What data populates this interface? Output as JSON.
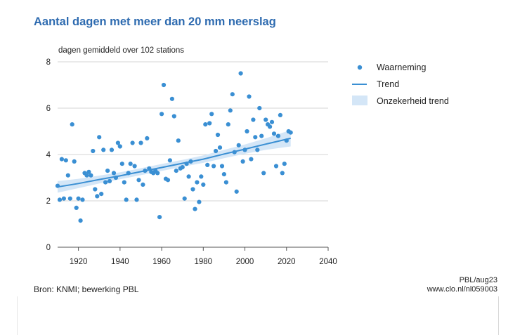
{
  "chart_data": {
    "type": "scatter",
    "title": "Aantal dagen met meer dan 20 mm neerslag",
    "ylabel": "dagen gemiddeld over 102 stations",
    "xlabel": "",
    "xlim": [
      1910,
      2040
    ],
    "ylim": [
      0,
      8
    ],
    "xticks": [
      1920,
      1940,
      1960,
      1980,
      2000,
      2020,
      2040
    ],
    "yticks": [
      0,
      2,
      4,
      6,
      8
    ],
    "grid": true,
    "legend_position": "right",
    "colors": {
      "points": "#3a8fd3",
      "trend": "#3a8fd3",
      "band": "#d4e6f7"
    },
    "series": [
      {
        "name": "Waarneming",
        "kind": "points",
        "x": [
          1910,
          1911,
          1912,
          1913,
          1914,
          1915,
          1916,
          1917,
          1918,
          1919,
          1920,
          1921,
          1922,
          1923,
          1924,
          1925,
          1926,
          1927,
          1928,
          1929,
          1930,
          1931,
          1932,
          1933,
          1934,
          1935,
          1936,
          1937,
          1938,
          1939,
          1940,
          1941,
          1942,
          1943,
          1944,
          1945,
          1946,
          1947,
          1948,
          1949,
          1950,
          1951,
          1952,
          1953,
          1954,
          1955,
          1956,
          1957,
          1958,
          1959,
          1960,
          1961,
          1962,
          1963,
          1964,
          1965,
          1966,
          1967,
          1968,
          1969,
          1970,
          1971,
          1972,
          1973,
          1974,
          1975,
          1976,
          1977,
          1978,
          1979,
          1980,
          1981,
          1982,
          1983,
          1984,
          1985,
          1986,
          1987,
          1988,
          1989,
          1990,
          1991,
          1992,
          1993,
          1994,
          1995,
          1996,
          1997,
          1998,
          1999,
          2000,
          2001,
          2002,
          2003,
          2004,
          2005,
          2006,
          2007,
          2008,
          2009,
          2010,
          2011,
          2012,
          2013,
          2014,
          2015,
          2016,
          2017,
          2018,
          2019,
          2020,
          2021,
          2022
        ],
        "y": [
          2.65,
          2.05,
          3.8,
          2.1,
          3.75,
          3.1,
          2.1,
          5.3,
          3.7,
          1.7,
          2.1,
          1.15,
          2.05,
          3.2,
          3.1,
          3.25,
          3.1,
          4.15,
          2.5,
          2.2,
          4.75,
          2.3,
          4.2,
          2.8,
          3.3,
          2.85,
          4.2,
          3.2,
          3.0,
          4.5,
          4.35,
          3.6,
          2.8,
          2.05,
          3.2,
          3.6,
          4.5,
          3.5,
          2.05,
          2.9,
          4.5,
          2.7,
          3.3,
          4.7,
          3.4,
          3.25,
          3.2,
          3.3,
          3.2,
          1.3,
          5.75,
          7.0,
          2.95,
          2.9,
          3.75,
          6.4,
          5.65,
          3.3,
          4.6,
          3.4,
          3.45,
          2.1,
          3.6,
          3.05,
          3.7,
          2.5,
          1.65,
          2.8,
          1.95,
          3.05,
          2.7,
          5.3,
          3.55,
          5.35,
          5.75,
          3.5,
          4.15,
          4.85,
          4.3,
          3.5,
          3.15,
          2.8,
          5.3,
          5.9,
          6.6,
          4.1,
          2.4,
          4.4,
          7.5,
          3.7,
          4.2,
          5.0,
          6.5,
          3.8,
          5.5,
          4.75,
          4.2,
          6.0,
          4.8,
          3.2,
          5.5,
          5.3,
          5.2,
          5.4,
          4.9,
          3.5,
          4.8,
          5.7,
          3.2,
          3.6,
          4.6,
          5.0,
          4.95
        ]
      },
      {
        "name": "Trend",
        "kind": "line",
        "x": [
          1910,
          1920,
          1930,
          1940,
          1950,
          1960,
          1970,
          1980,
          1990,
          2000,
          2010,
          2022
        ],
        "y": [
          2.6,
          2.75,
          2.92,
          3.08,
          3.26,
          3.44,
          3.62,
          3.8,
          4.02,
          4.23,
          4.45,
          4.7
        ]
      },
      {
        "name": "Onzekerheid trend",
        "kind": "band",
        "x": [
          1910,
          1920,
          1930,
          1940,
          1950,
          1960,
          1970,
          1980,
          1990,
          2000,
          2010,
          2022
        ],
        "lower": [
          2.35,
          2.55,
          2.75,
          2.93,
          3.11,
          3.29,
          3.47,
          3.64,
          3.84,
          4.03,
          4.2,
          4.35
        ],
        "upper": [
          2.85,
          2.95,
          3.09,
          3.23,
          3.41,
          3.59,
          3.77,
          3.96,
          4.2,
          4.43,
          4.7,
          5.05
        ]
      }
    ]
  },
  "footer": {
    "source": "Bron: KNMI; bewerking PBL",
    "credit_line1": "PBL/aug23",
    "credit_line2": "www.clo.nl/nl059003"
  }
}
